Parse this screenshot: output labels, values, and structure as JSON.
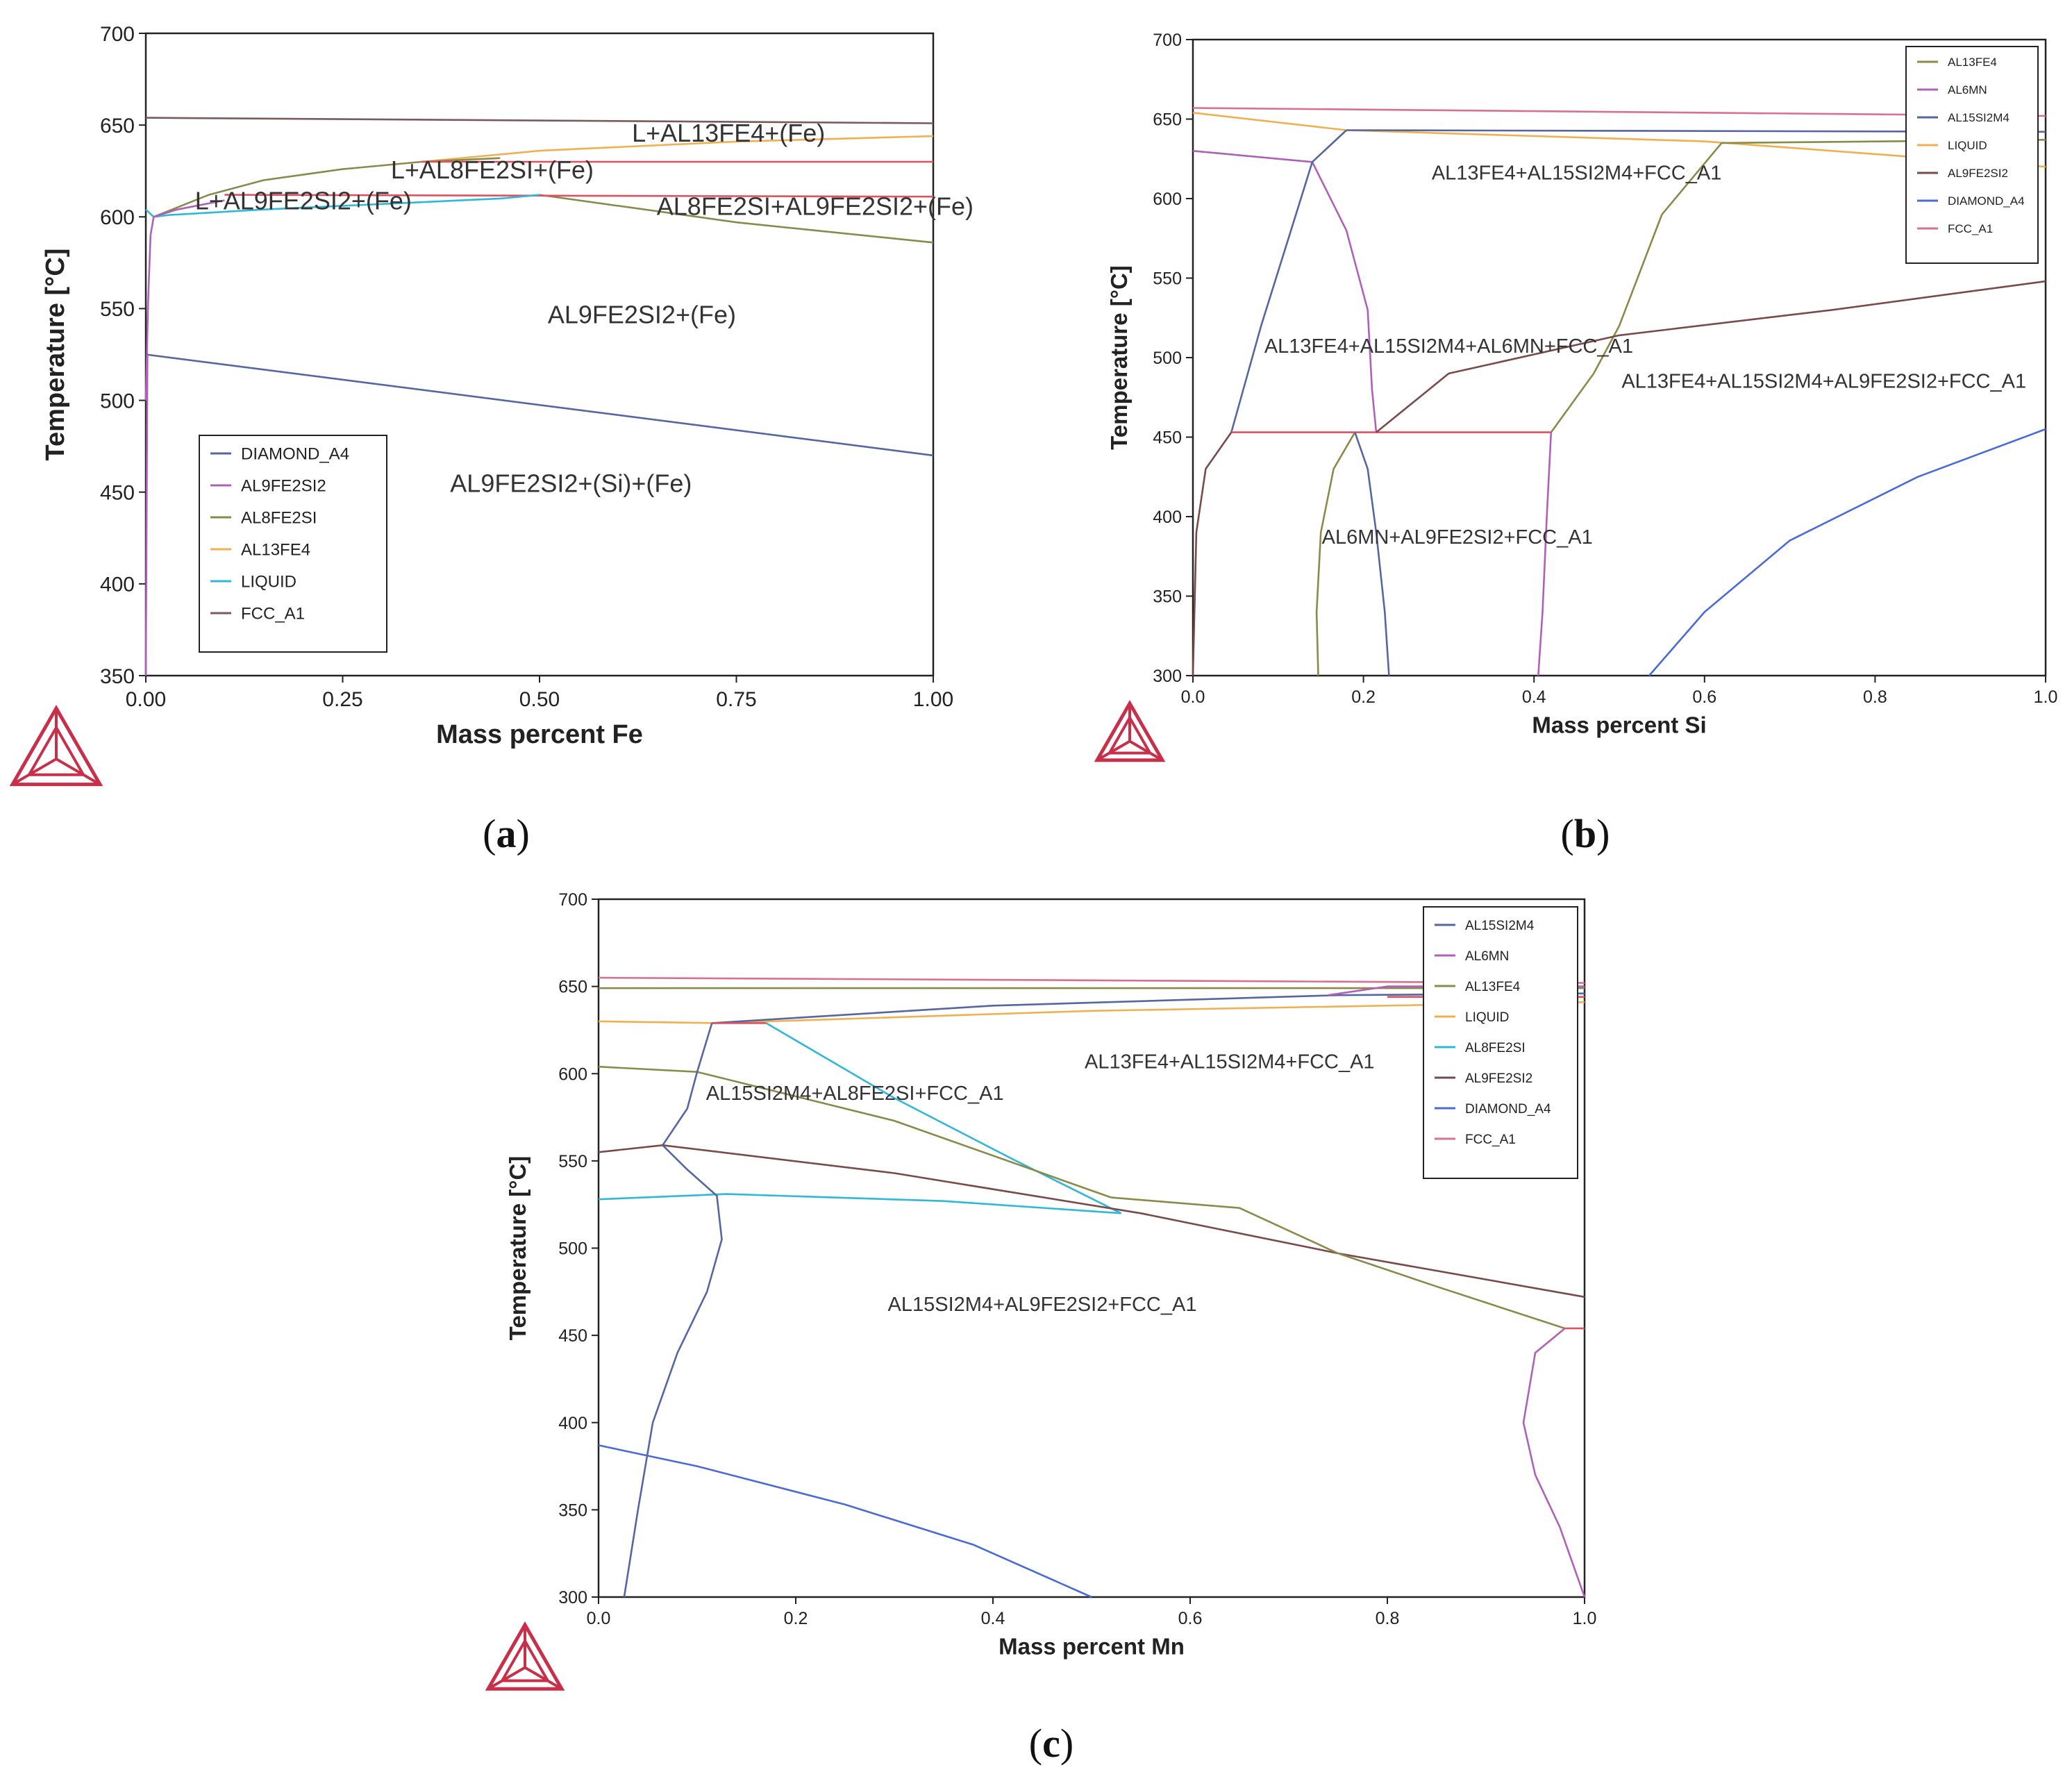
{
  "chart_data": [
    {
      "panel": "a",
      "caption": {
        "open": "(",
        "letter": "a",
        "close": ")"
      },
      "type": "line",
      "xlabel": "Mass percent Fe",
      "ylabel": "Temperature [°C]",
      "xlim": [
        0,
        1
      ],
      "ylim": [
        350,
        700
      ],
      "xticks": [
        0,
        0.25,
        0.5,
        0.75,
        1
      ],
      "xtick_labels": [
        "0.00",
        "0.25",
        "0.50",
        "0.75",
        "1.00"
      ],
      "yticks": [
        350,
        400,
        450,
        500,
        550,
        600,
        650,
        700
      ],
      "ytick_labels": [
        "350",
        "400",
        "450",
        "500",
        "550",
        "600",
        "650",
        "700"
      ],
      "legend_position": "bottom-left",
      "legend": [
        {
          "name": "DIAMOND_A4",
          "color": "#5566a0"
        },
        {
          "name": "AL9FE2SI2",
          "color": "#b060b8"
        },
        {
          "name": "AL8FE2SI",
          "color": "#8a8a4a"
        },
        {
          "name": "AL13FE4",
          "color": "#f0b050"
        },
        {
          "name": "LIQUID",
          "color": "#30b8d8"
        },
        {
          "name": "FCC_A1",
          "color": "#7a5a5a"
        }
      ],
      "regions": [
        {
          "text": "L+AL13FE4+(Fe)",
          "x": 0.74,
          "y": 641
        },
        {
          "text": "L+AL8FE2SI+(Fe)",
          "x": 0.44,
          "y": 621
        },
        {
          "text": "L+AL9FE2SI2+(Fe)",
          "x": 0.2,
          "y": 604
        },
        {
          "text": "AL8FE2SI+AL9FE2SI2+(Fe)",
          "x": 0.85,
          "y": 601
        },
        {
          "text": "AL9FE2SI2+(Fe)",
          "x": 0.63,
          "y": 542
        },
        {
          "text": "AL9FE2SI2+(Si)+(Fe)",
          "x": 0.54,
          "y": 450
        }
      ],
      "series": [
        {
          "name": "FCC_A1",
          "color": "#7a5a5a",
          "x": [
            0,
            1
          ],
          "y": [
            654,
            651
          ]
        },
        {
          "name": "AL13FE4",
          "color": "#f0b050",
          "x": [
            0.35,
            0.5,
            0.75,
            1
          ],
          "y": [
            630,
            636,
            641,
            644
          ]
        },
        {
          "name": "AL8FE2SI",
          "color": "#8a8a4a",
          "x": [
            0.01,
            0.08,
            0.15,
            0.25,
            0.35,
            0.45
          ],
          "y": [
            600,
            612,
            620,
            626,
            630,
            632
          ]
        },
        {
          "name": "AL8FE2SI",
          "color": "#8a8a4a",
          "x": [
            0.5,
            0.75,
            1
          ],
          "y": [
            612,
            597,
            586
          ]
        },
        {
          "name": "invariant",
          "color": "#e05060",
          "x": [
            0.35,
            1
          ],
          "y": [
            630,
            630
          ]
        },
        {
          "name": "invariant",
          "color": "#e05060",
          "x": [
            0.1,
            1
          ],
          "y": [
            612,
            611
          ]
        },
        {
          "name": "LIQUID",
          "color": "#30b8d8",
          "x": [
            0,
            0.01,
            0.03,
            0.15,
            0.3,
            0.45,
            0.5
          ],
          "y": [
            604,
            600,
            601,
            604,
            607,
            610,
            612
          ]
        },
        {
          "name": "AL9FE2SI2",
          "color": "#b060b8",
          "x": [
            0,
            0.003,
            0.006,
            0.01,
            0.04,
            0.1
          ],
          "y": [
            500,
            555,
            590,
            600,
            604,
            609
          ]
        },
        {
          "name": "DIAMOND_A4",
          "color": "#5566a0",
          "x": [
            0,
            1
          ],
          "y": [
            525,
            470
          ]
        },
        {
          "name": "AL9FE2SI2",
          "color": "#b060b8",
          "x": [
            0,
            0.002
          ],
          "y": [
            350,
            525
          ]
        }
      ]
    },
    {
      "panel": "b",
      "caption": {
        "open": "(",
        "letter": "b",
        "close": ")"
      },
      "type": "line",
      "xlabel": "Mass percent Si",
      "ylabel": "Temperature [°C]",
      "xlim": [
        0,
        1
      ],
      "ylim": [
        300,
        700
      ],
      "xticks": [
        0,
        0.2,
        0.4,
        0.6,
        0.8,
        1
      ],
      "xtick_labels": [
        "0.0",
        "0.2",
        "0.4",
        "0.6",
        "0.8",
        "1.0"
      ],
      "yticks": [
        300,
        350,
        400,
        450,
        500,
        550,
        600,
        650,
        700
      ],
      "ytick_labels": [
        "300",
        "350",
        "400",
        "450",
        "500",
        "550",
        "600",
        "650",
        "700"
      ],
      "legend_position": "top-right",
      "legend": [
        {
          "name": "AL13FE4",
          "color": "#8a8a4a"
        },
        {
          "name": "AL6MN",
          "color": "#b060b8"
        },
        {
          "name": "AL15SI2M4",
          "color": "#5566a0"
        },
        {
          "name": "LIQUID",
          "color": "#f0b050"
        },
        {
          "name": "AL9FE2SI2",
          "color": "#7a4a4a"
        },
        {
          "name": "DIAMOND_A4",
          "color": "#4a6ad8"
        },
        {
          "name": "FCC_A1",
          "color": "#d87090"
        }
      ],
      "regions": [
        {
          "text": "AL13FE4+AL15SI2M4+FCC_A1",
          "x": 0.45,
          "y": 612
        },
        {
          "text": "AL13FE4+AL15SI2M4+AL6MN+FCC_A1",
          "x": 0.3,
          "y": 503
        },
        {
          "text": "AL13FE4+AL15SI2M4+AL9FE2SI2+FCC_A1",
          "x": 0.74,
          "y": 481
        },
        {
          "text": "AL6MN+AL9FE2SI2+FCC_A1",
          "x": 0.31,
          "y": 383
        }
      ],
      "series": [
        {
          "name": "FCC_A1",
          "color": "#d87090",
          "x": [
            0,
            1
          ],
          "y": [
            657,
            652
          ]
        },
        {
          "name": "LIQUID",
          "color": "#f0b050",
          "x": [
            0,
            0.18,
            0.6,
            1
          ],
          "y": [
            654,
            643,
            636,
            620
          ]
        },
        {
          "name": "AL15SI2M4",
          "color": "#5566a0",
          "x": [
            0.18,
            1
          ],
          "y": [
            643,
            642
          ]
        },
        {
          "name": "AL6MN",
          "color": "#b060b8",
          "x": [
            0,
            0.14
          ],
          "y": [
            630,
            623
          ]
        },
        {
          "name": "AL6MN",
          "color": "#b060b8",
          "x": [
            0.14,
            0.18,
            0.205,
            0.21,
            0.215
          ],
          "y": [
            623,
            580,
            530,
            480,
            453
          ]
        },
        {
          "name": "AL15SI2M4",
          "color": "#5566a0",
          "x": [
            0.045,
            0.08,
            0.115,
            0.14,
            0.18
          ],
          "y": [
            453,
            520,
            580,
            623,
            643
          ]
        },
        {
          "name": "invariant",
          "color": "#e05060",
          "x": [
            0.045,
            0.42
          ],
          "y": [
            453,
            453
          ]
        },
        {
          "name": "AL13FE4",
          "color": "#8a8a4a",
          "x": [
            0.62,
            1
          ],
          "y": [
            635,
            637
          ]
        },
        {
          "name": "AL13FE4",
          "color": "#8a8a4a",
          "x": [
            0.42,
            0.47,
            0.5,
            0.55,
            0.62
          ],
          "y": [
            453,
            490,
            520,
            590,
            635
          ]
        },
        {
          "name": "AL9FE2SI2",
          "color": "#7a4a4a",
          "x": [
            0.215,
            0.3,
            0.5,
            0.75,
            1
          ],
          "y": [
            453,
            490,
            514,
            530,
            548
          ]
        },
        {
          "name": "AL9FE2SI2",
          "color": "#7a4a4a",
          "x": [
            0,
            0.004,
            0.015,
            0.045
          ],
          "y": [
            300,
            390,
            430,
            453
          ]
        },
        {
          "name": "AL13FE4",
          "color": "#8a8a4a",
          "x": [
            0.147,
            0.145,
            0.15,
            0.165,
            0.19
          ],
          "y": [
            300,
            340,
            390,
            430,
            453
          ]
        },
        {
          "name": "AL15SI2M4",
          "color": "#5566a0",
          "x": [
            0.19,
            0.205,
            0.215,
            0.225,
            0.23
          ],
          "y": [
            453,
            430,
            390,
            340,
            300
          ]
        },
        {
          "name": "AL6MN",
          "color": "#b060b8",
          "x": [
            0.42,
            0.415,
            0.41,
            0.405
          ],
          "y": [
            453,
            400,
            340,
            300
          ]
        },
        {
          "name": "DIAMOND_A4",
          "color": "#4a6ad8",
          "x": [
            0.535,
            0.6,
            0.7,
            0.85,
            1
          ],
          "y": [
            300,
            340,
            385,
            425,
            455
          ]
        }
      ]
    },
    {
      "panel": "c",
      "caption": {
        "open": "(",
        "letter": "c",
        "close": ")"
      },
      "type": "line",
      "xlabel": "Mass percent Mn",
      "ylabel": "Temperature [°C]",
      "xlim": [
        0,
        1
      ],
      "ylim": [
        300,
        700
      ],
      "xticks": [
        0,
        0.2,
        0.4,
        0.6,
        0.8,
        1
      ],
      "xtick_labels": [
        "0.0",
        "0.2",
        "0.4",
        "0.6",
        "0.8",
        "1.0"
      ],
      "yticks": [
        300,
        350,
        400,
        450,
        500,
        550,
        600,
        650,
        700
      ],
      "ytick_labels": [
        "300",
        "350",
        "400",
        "450",
        "500",
        "550",
        "600",
        "650",
        "700"
      ],
      "legend_position": "top-right",
      "legend": [
        {
          "name": "AL15SI2M4",
          "color": "#5566a0"
        },
        {
          "name": "AL6MN",
          "color": "#b060b8"
        },
        {
          "name": "AL13FE4",
          "color": "#8a8a4a"
        },
        {
          "name": "LIQUID",
          "color": "#f0b050"
        },
        {
          "name": "AL8FE2SI",
          "color": "#30b8d8"
        },
        {
          "name": "AL9FE2SI2",
          "color": "#7a4a4a"
        },
        {
          "name": "DIAMOND_A4",
          "color": "#4a6ad8"
        },
        {
          "name": "FCC_A1",
          "color": "#d87090"
        }
      ],
      "regions": [
        {
          "text": "AL15SI2M4+AL8FE2SI+FCC_A1",
          "x": 0.26,
          "y": 585
        },
        {
          "text": "AL13FE4+AL15SI2M4+FCC_A1",
          "x": 0.64,
          "y": 603
        },
        {
          "text": "AL15SI2M4+AL9FE2SI2+FCC_A1",
          "x": 0.45,
          "y": 464
        }
      ],
      "series": [
        {
          "name": "FCC_A1",
          "color": "#d87090",
          "x": [
            0,
            1
          ],
          "y": [
            655,
            652
          ]
        },
        {
          "name": "AL13FE4",
          "color": "#8a8a4a",
          "x": [
            0,
            1
          ],
          "y": [
            649,
            649
          ]
        },
        {
          "name": "LIQUID",
          "color": "#f0b050",
          "x": [
            0,
            0.12,
            0.5,
            1
          ],
          "y": [
            630,
            629,
            636,
            641
          ]
        },
        {
          "name": "AL15SI2M4",
          "color": "#5566a0",
          "x": [
            0.115,
            0.4,
            0.75,
            1
          ],
          "y": [
            629,
            639,
            645,
            646
          ]
        },
        {
          "name": "AL6MN",
          "color": "#b060b8",
          "x": [
            0.74,
            0.8,
            1
          ],
          "y": [
            645,
            650,
            650
          ]
        },
        {
          "name": "invariant",
          "color": "#e05060",
          "x": [
            0.8,
            1
          ],
          "y": [
            644,
            644
          ]
        },
        {
          "name": "invariant",
          "color": "#e05060",
          "x": [
            0.115,
            0.17
          ],
          "y": [
            629,
            629
          ]
        },
        {
          "name": "AL8FE2SI",
          "color": "#30b8d8",
          "x": [
            0.17,
            0.3,
            0.42,
            0.53
          ],
          "y": [
            629,
            586,
            551,
            520
          ]
        },
        {
          "name": "AL13FE4",
          "color": "#8a8a4a",
          "x": [
            0,
            0.1,
            0.3,
            0.52
          ],
          "y": [
            604,
            601,
            573,
            529
          ]
        },
        {
          "name": "AL15SI2M4",
          "color": "#5566a0",
          "x": [
            0.065,
            0.09,
            0.1,
            0.115
          ],
          "y": [
            559,
            580,
            601,
            629
          ]
        },
        {
          "name": "AL9FE2SI2",
          "color": "#7a4a4a",
          "x": [
            0,
            0.065,
            0.3,
            0.55,
            0.75,
            1
          ],
          "y": [
            555,
            559,
            543,
            520,
            497,
            472
          ]
        },
        {
          "name": "AL8FE2SI",
          "color": "#30b8d8",
          "x": [
            0,
            0.13,
            0.35,
            0.53
          ],
          "y": [
            528,
            531,
            527,
            520
          ]
        },
        {
          "name": "AL13FE4",
          "color": "#8a8a4a",
          "x": [
            0.52,
            0.65,
            0.75,
            0.85,
            0.98
          ],
          "y": [
            529,
            523,
            497,
            478,
            454
          ]
        },
        {
          "name": "invariant",
          "color": "#e05060",
          "x": [
            0.98,
            1
          ],
          "y": [
            454,
            454
          ]
        },
        {
          "name": "AL15SI2M4",
          "color": "#5566a0",
          "x": [
            0.065,
            0.09,
            0.12,
            0.125,
            0.11,
            0.08,
            0.055,
            0.04,
            0.026
          ],
          "y": [
            559,
            545,
            530,
            505,
            475,
            440,
            400,
            350,
            300
          ]
        },
        {
          "name": "AL6MN",
          "color": "#b060b8",
          "x": [
            0.98,
            0.95,
            0.938,
            0.95,
            0.975,
            1
          ],
          "y": [
            454,
            440,
            400,
            370,
            340,
            300
          ]
        },
        {
          "name": "DIAMOND_A4",
          "color": "#4a6ad8",
          "x": [
            0,
            0.1,
            0.25,
            0.38,
            0.5
          ],
          "y": [
            387,
            375,
            353,
            330,
            300
          ]
        }
      ]
    }
  ]
}
